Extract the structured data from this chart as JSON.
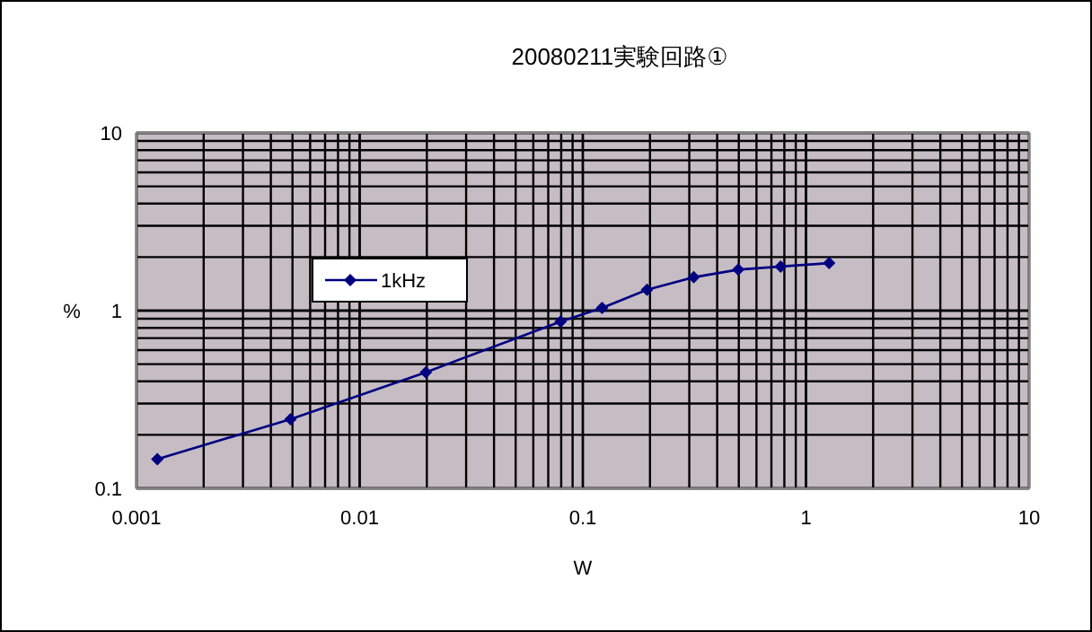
{
  "chart_data": {
    "type": "line",
    "title": "20080211実験回路①",
    "xlabel": "W",
    "ylabel": "%",
    "x": [
      0.00124,
      0.0049,
      0.0198,
      0.0795,
      0.122,
      0.194,
      0.314,
      0.497,
      0.77,
      1.27
    ],
    "series": [
      {
        "name": "1kHz",
        "color": "#000080",
        "values": [
          0.146,
          0.245,
          0.45,
          0.867,
          1.035,
          1.31,
          1.54,
          1.7,
          1.77,
          1.85
        ]
      }
    ],
    "log": "xy",
    "xlim": [
      0.001,
      10
    ],
    "ylim": [
      0.1,
      10
    ],
    "xticks": [
      0.001,
      0.01,
      0.1,
      1,
      10
    ],
    "yticks": [
      0.1,
      1,
      10
    ],
    "grid": true,
    "legend": "left",
    "marker": "diamond",
    "line_style": "solid"
  }
}
